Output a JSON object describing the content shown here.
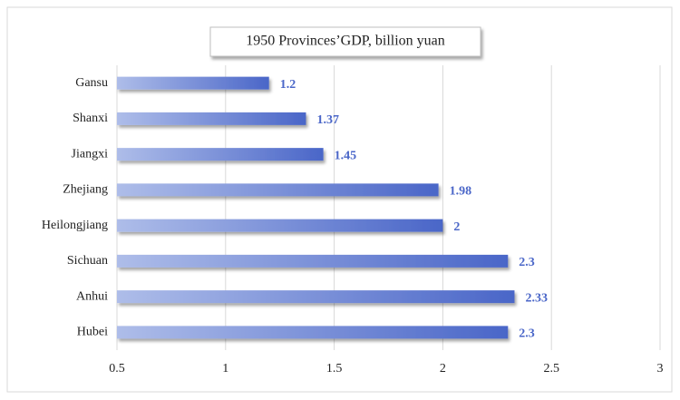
{
  "chart_data": {
    "type": "bar",
    "orientation": "horizontal",
    "title": "1950 Provinces’GDP,  billion  yuan",
    "categories": [
      "Gansu",
      "Shanxi",
      "Jiangxi",
      "Zhejiang",
      "Heilongjiang",
      "Sichuan",
      "Anhui",
      "Hubei"
    ],
    "values": [
      1.2,
      1.37,
      1.45,
      1.98,
      2,
      2.3,
      2.33,
      2.3
    ],
    "color": "#4a66c8",
    "xlim": [
      0.5,
      3
    ],
    "xticks": [
      0.5,
      1,
      1.5,
      2,
      2.5,
      3
    ],
    "grid": true,
    "data_labels": true
  }
}
